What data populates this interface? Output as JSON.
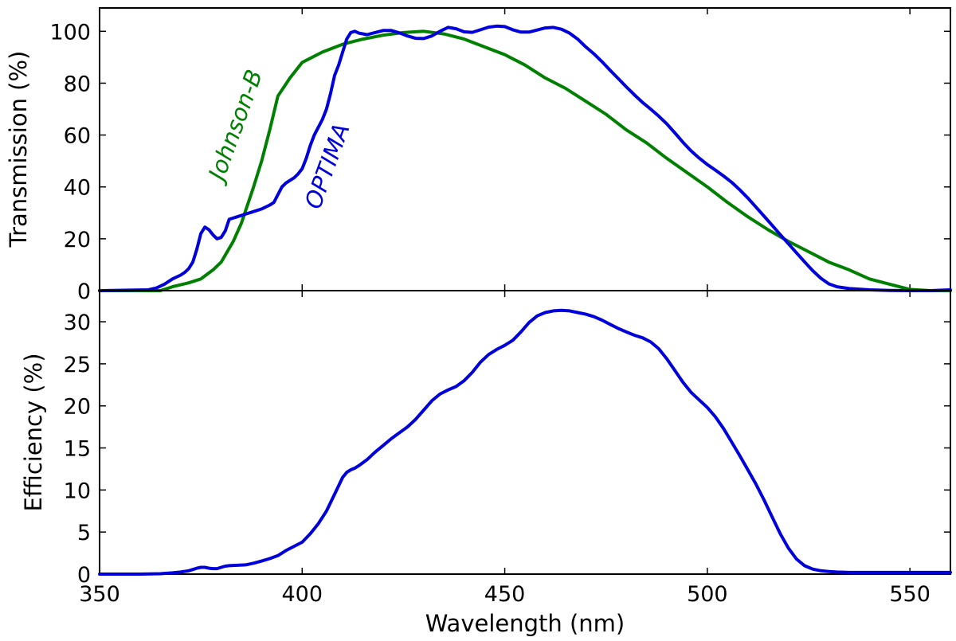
{
  "chart_data": [
    {
      "type": "line",
      "panel": "top",
      "title": "",
      "xlabel": "",
      "ylabel": "Transmission (%)",
      "xlim": [
        350,
        560
      ],
      "ylim": [
        0,
        109
      ],
      "yticks": [
        0,
        20,
        40,
        60,
        80,
        100
      ],
      "xticks": [
        350,
        400,
        450,
        500,
        550
      ],
      "grid": false,
      "series": [
        {
          "name": "Johnson-B",
          "color": "#008000",
          "x": [
            350,
            365,
            368,
            372,
            375,
            378,
            380,
            383,
            385,
            388,
            390,
            392,
            394,
            397,
            400,
            405,
            410,
            415,
            420,
            425,
            430,
            435,
            440,
            445,
            450,
            455,
            460,
            465,
            470,
            475,
            480,
            485,
            490,
            495,
            500,
            505,
            510,
            515,
            520,
            525,
            530,
            535,
            540,
            545,
            550,
            555,
            560
          ],
          "y": [
            0,
            0,
            1.5,
            3,
            4.5,
            8,
            11,
            19,
            26,
            40,
            50,
            62,
            75,
            82,
            88,
            92,
            95,
            97,
            98.5,
            99.5,
            100,
            99,
            97,
            94,
            91,
            87,
            82,
            78,
            73,
            68,
            62,
            57,
            51,
            45.5,
            40,
            34,
            28.5,
            23.5,
            19,
            15,
            11,
            8,
            4.5,
            2.5,
            0.5,
            0,
            0
          ]
        },
        {
          "name": "OPTIMA",
          "color": "#0000dd",
          "x": [
            350,
            362,
            364,
            366,
            368,
            370,
            371,
            372,
            373,
            374,
            375,
            376,
            377,
            378,
            379,
            380,
            381,
            382,
            384,
            386,
            388,
            390,
            392,
            393,
            394,
            395,
            396,
            397,
            398,
            399,
            400,
            401,
            402,
            403,
            404,
            405,
            406,
            407,
            408,
            409,
            410,
            411,
            412,
            413,
            414,
            416,
            418,
            420,
            422,
            424,
            426,
            428,
            430,
            432,
            434,
            436,
            438,
            440,
            442,
            444,
            446,
            448,
            450,
            452,
            454,
            456,
            458,
            460,
            462,
            464,
            466,
            468,
            470,
            472,
            474,
            476,
            478,
            480,
            482,
            484,
            486,
            488,
            490,
            492,
            494,
            496,
            498,
            500,
            502,
            504,
            506,
            508,
            510,
            512,
            514,
            516,
            518,
            520,
            522,
            524,
            526,
            528,
            530,
            532,
            535,
            540,
            545,
            550,
            555,
            560
          ],
          "y": [
            0,
            0.3,
            1,
            2.5,
            4.5,
            6,
            7,
            8.5,
            11,
            16,
            22,
            24.5,
            23.5,
            21.5,
            20,
            20.5,
            23,
            27.5,
            28.5,
            29.5,
            30.5,
            31.5,
            33,
            34,
            37,
            40,
            41.5,
            42.5,
            43.5,
            45,
            47,
            51,
            56,
            60,
            63,
            66,
            70,
            76,
            83,
            87,
            92,
            97,
            99.5,
            100,
            99.3,
            98.7,
            99.5,
            100.3,
            100.3,
            99.4,
            98.2,
            97.3,
            97.2,
            98.2,
            100,
            101.5,
            101,
            99.8,
            99.6,
            100.6,
            101.6,
            102,
            101.8,
            100.6,
            99.7,
            99.7,
            100.5,
            101.3,
            101.5,
            100.8,
            99.3,
            97,
            94,
            91.3,
            88.3,
            85,
            81.8,
            78.6,
            75.5,
            72.6,
            70,
            67.3,
            64.3,
            60.8,
            57.2,
            53.9,
            51.1,
            48.6,
            46.5,
            44.2,
            41.8,
            38.9,
            35.7,
            32.2,
            28.7,
            25.2,
            21.6,
            18.1,
            14.6,
            11.1,
            7.7,
            4.8,
            2.6,
            1.5,
            0.8,
            0.3,
            0.1,
            0,
            0,
            0.3
          ]
        }
      ],
      "annotations": [
        "Johnson-B",
        "OPTIMA"
      ]
    },
    {
      "type": "line",
      "panel": "bottom",
      "title": "",
      "xlabel": "Wavelength (nm)",
      "ylabel": "Efficiency (%)",
      "xlim": [
        350,
        560
      ],
      "ylim": [
        0,
        33.7
      ],
      "yticks": [
        0,
        5,
        10,
        15,
        20,
        25,
        30
      ],
      "xticks": [
        350,
        400,
        450,
        500,
        550
      ],
      "grid": false,
      "series": [
        {
          "name": "Efficiency",
          "color": "#0000dd",
          "x": [
            350,
            360,
            365,
            368,
            370,
            372,
            373,
            374,
            375,
            376,
            377,
            378,
            379,
            380,
            381,
            382,
            384,
            386,
            388,
            390,
            392,
            394,
            396,
            398,
            400,
            402,
            404,
            406,
            408,
            410,
            411,
            412,
            413,
            414,
            416,
            418,
            420,
            422,
            424,
            426,
            428,
            430,
            432,
            434,
            436,
            438,
            440,
            442,
            444,
            446,
            448,
            450,
            452,
            454,
            456,
            458,
            460,
            462,
            464,
            466,
            468,
            470,
            472,
            474,
            476,
            478,
            480,
            482,
            484,
            486,
            488,
            490,
            492,
            494,
            496,
            498,
            500,
            502,
            504,
            506,
            508,
            510,
            512,
            514,
            516,
            518,
            520,
            522,
            524,
            526,
            528,
            530,
            532,
            535,
            540,
            545,
            550,
            555,
            560
          ],
          "y": [
            0,
            0,
            0.05,
            0.15,
            0.25,
            0.4,
            0.55,
            0.7,
            0.8,
            0.8,
            0.7,
            0.65,
            0.65,
            0.8,
            0.95,
            1,
            1.05,
            1.1,
            1.3,
            1.55,
            1.85,
            2.2,
            2.8,
            3.3,
            3.8,
            4.8,
            6,
            7.5,
            9.5,
            11.5,
            12.1,
            12.4,
            12.6,
            12.9,
            13.6,
            14.5,
            15.3,
            16.1,
            16.8,
            17.5,
            18.4,
            19.5,
            20.6,
            21.4,
            21.9,
            22.3,
            23,
            24,
            25.2,
            26.1,
            26.7,
            27.2,
            27.8,
            28.8,
            29.9,
            30.7,
            31.1,
            31.3,
            31.35,
            31.3,
            31.1,
            30.9,
            30.6,
            30.2,
            29.7,
            29.2,
            28.8,
            28.4,
            28.1,
            27.6,
            26.8,
            25.6,
            24.2,
            22.8,
            21.6,
            20.7,
            19.8,
            18.7,
            17.3,
            15.7,
            14.1,
            12.4,
            10.7,
            8.8,
            6.8,
            4.8,
            3.1,
            1.8,
            1,
            0.6,
            0.4,
            0.3,
            0.25,
            0.2,
            0.2,
            0.2,
            0.2,
            0.2,
            0.2
          ]
        }
      ]
    }
  ]
}
